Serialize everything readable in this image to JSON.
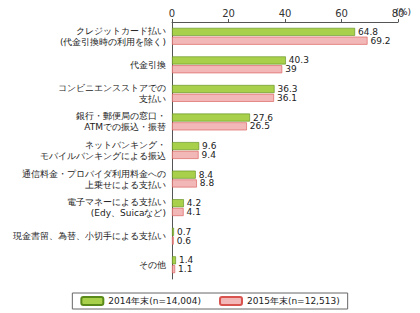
{
  "chart_data": {
    "type": "bar",
    "orientation": "horizontal",
    "xlabel": "(%)",
    "categories": [
      "クレジットカード払い\n(代金引換時の利用を除く)",
      "代金引換",
      "コンビニエンスストアでの\n支払い",
      "銀行・郵便局の窓口・\nATMでの振込・振替",
      "ネットバンキング・\nモバイルバンキングによる振込",
      "通信料金・プロバイダ利用料金への\n上乗せによる支払い",
      "電子マネーによる支払い\n(Edy、Suicaなど)",
      "現金書留、為替、小切手による支払い",
      "その他"
    ],
    "series": [
      {
        "name": "2014年末(n=14,004)",
        "color": "#a9d04a",
        "values": [
          64.8,
          40.3,
          36.3,
          27.6,
          9.6,
          8.4,
          4.2,
          0.7,
          1.4
        ]
      },
      {
        "name": "2015年末(n=12,513)",
        "color": "#f2b8b8",
        "values": [
          69.2,
          39.0,
          36.1,
          26.5,
          9.4,
          8.8,
          4.1,
          0.6,
          1.1
        ]
      }
    ],
    "xlim": [
      0,
      80
    ],
    "xticks": [
      0,
      20,
      40,
      60,
      80
    ],
    "grid": false,
    "legend": "bottom",
    "data_labels": true
  }
}
